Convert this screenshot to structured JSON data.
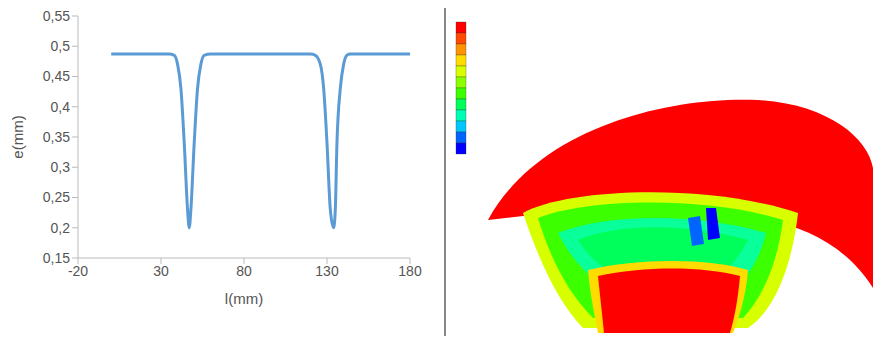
{
  "chart_data": {
    "type": "line",
    "xlabel": "l(mm)",
    "ylabel": "e(mm)",
    "x": [
      0,
      30,
      35,
      38,
      40,
      42,
      44,
      46,
      47,
      48,
      50,
      52,
      54,
      56,
      60,
      80,
      110,
      120,
      123,
      126,
      128,
      130,
      132,
      134,
      135,
      136,
      138,
      140,
      142,
      144,
      150,
      180
    ],
    "values": [
      0.487,
      0.487,
      0.487,
      0.485,
      0.47,
      0.43,
      0.34,
      0.23,
      0.2,
      0.23,
      0.34,
      0.43,
      0.47,
      0.485,
      0.487,
      0.487,
      0.487,
      0.487,
      0.485,
      0.47,
      0.43,
      0.34,
      0.23,
      0.2,
      0.23,
      0.34,
      0.43,
      0.47,
      0.485,
      0.487,
      0.487,
      0.487
    ],
    "color": "#5b9bd5",
    "xlim": [
      -20,
      180
    ],
    "xticks": [
      -20,
      30,
      80,
      130,
      180
    ],
    "ylim": [
      0.15,
      0.55
    ],
    "yticks": [
      {
        "value": 0.15,
        "label": "0,15"
      },
      {
        "value": 0.2,
        "label": "0,2"
      },
      {
        "value": 0.25,
        "label": "0,25"
      },
      {
        "value": 0.3,
        "label": "0,3"
      },
      {
        "value": 0.35,
        "label": "0,35"
      },
      {
        "value": 0.4,
        "label": "0,4"
      },
      {
        "value": 0.45,
        "label": "0,45"
      },
      {
        "value": 0.5,
        "label": "0,5"
      },
      {
        "value": 0.55,
        "label": "0,55"
      }
    ],
    "grid": false
  },
  "contour_plot": {
    "legend_colors": [
      "#ff0000",
      "#ff4a00",
      "#ff9400",
      "#ffdc00",
      "#d8ff00",
      "#8cff00",
      "#3cff00",
      "#00ff5a",
      "#00ffb4",
      "#00c8ff",
      "#0064ff",
      "#0000ff"
    ]
  }
}
